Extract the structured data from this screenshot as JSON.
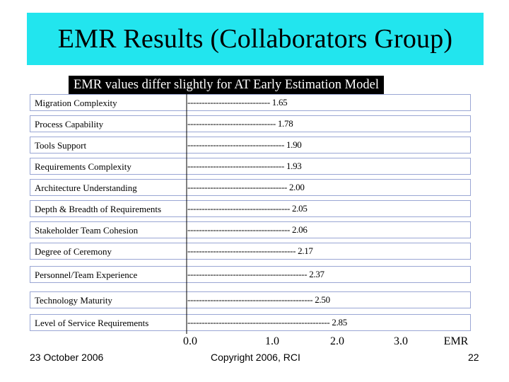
{
  "slide": {
    "title": "EMR Results (Collaborators Group)",
    "banner_text": "EMR values differ slightly for AT Early Estimation Model",
    "footer_date": "23 October 2006",
    "footer_copyright": "Copyright 2006, RCI",
    "page_number": "22"
  },
  "colors": {
    "title_band": "#22e5ee",
    "row_border": "#9aa6d4",
    "banner_bg": "#000000",
    "banner_text": "#ffffff"
  },
  "chart_data": {
    "type": "bar",
    "title": "",
    "xlabel": "EMR",
    "ylabel": "",
    "xlim": [
      0,
      3
    ],
    "x_ticks": [
      "0.0",
      "1.0",
      "2.0",
      "3.0"
    ],
    "categories": [
      "Migration Complexity",
      "Process Capability",
      "Tools Support",
      "Requirements Complexity",
      "Architecture Understanding",
      "Depth & Breadth of Requirements",
      "Stakeholder Team Cohesion",
      "Degree of Ceremony",
      "Personnel/Team Experience",
      "Technology Maturity",
      "Level of Service Requirements"
    ],
    "values": [
      1.65,
      1.78,
      1.9,
      1.93,
      2.0,
      2.05,
      2.06,
      2.17,
      2.37,
      2.5,
      2.85
    ],
    "value_labels": [
      "1.65",
      "1.78",
      "1.90",
      "1.93",
      "2.00",
      "2.05",
      "2.06",
      "2.17",
      "2.37",
      "2.50",
      "2.85"
    ]
  }
}
